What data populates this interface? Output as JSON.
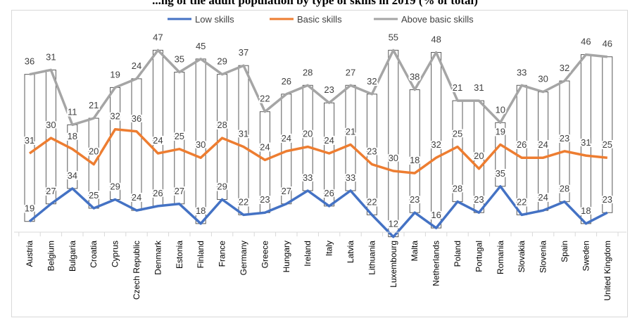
{
  "chart_data": {
    "type": "line",
    "title": "...ng of the adult population by type of skills in 2019 (% of total)",
    "xlabel": "",
    "ylabel": "",
    "legend_position": "top",
    "grid": false,
    "categories": [
      "Austria",
      "Belgium",
      "Bulgaria",
      "Croatia",
      "Cyprus",
      "Czech Republic",
      "Denmark",
      "Estonia",
      "Finland",
      "France",
      "Germany",
      "Greece",
      "Hungary",
      "Ireland",
      "Italy",
      "Latvia",
      "Lithuania",
      "Luxembourg",
      "Malta",
      "Netherlands",
      "Poland",
      "Portugal",
      "Romania",
      "Slovakia",
      "Slovenia",
      "Spain",
      "Sweden",
      "United Kingdom"
    ],
    "series": [
      {
        "name": "Low skills",
        "color": "#4472c4",
        "values": [
          19,
          27,
          34,
          25,
          29,
          24,
          26,
          27,
          18,
          29,
          22,
          23,
          27,
          33,
          26,
          33,
          22,
          12,
          23,
          16,
          28,
          23,
          35,
          22,
          24,
          28,
          18,
          23
        ]
      },
      {
        "name": "Basic skills",
        "color": "#ed7d31",
        "values": [
          31,
          30,
          18,
          20,
          32,
          36,
          24,
          25,
          30,
          28,
          31,
          24,
          24,
          20,
          24,
          21,
          23,
          30,
          18,
          32,
          25,
          20,
          19,
          26,
          24,
          23,
          31,
          25
        ]
      },
      {
        "name": "Above basic skills",
        "color": "#a5a5a5",
        "values": [
          36,
          31,
          11,
          21,
          19,
          24,
          47,
          35,
          45,
          29,
          37,
          22,
          26,
          28,
          23,
          27,
          32,
          55,
          38,
          48,
          21,
          31,
          10,
          33,
          30,
          32,
          46,
          46
        ]
      }
    ],
    "plotted_lines": {
      "low": [
        19,
        27,
        34,
        25,
        29,
        24,
        26,
        27,
        18,
        29,
        22,
        23,
        27,
        33,
        26,
        33,
        22,
        12,
        23,
        16,
        28,
        23,
        35,
        22,
        24,
        28,
        18,
        23
      ],
      "basic_cumulative": [
        50,
        57,
        52,
        45,
        61,
        60,
        50,
        52,
        48,
        57,
        53,
        47,
        51,
        53,
        50,
        54,
        45,
        42,
        41,
        48,
        53,
        43,
        54,
        48,
        48,
        51,
        49,
        48
      ],
      "above_cumulative": [
        86,
        88,
        63,
        66,
        80,
        84,
        97,
        87,
        93,
        86,
        90,
        69,
        77,
        81,
        73,
        81,
        77,
        97,
        79,
        96,
        74,
        74,
        64,
        81,
        78,
        83,
        95,
        94
      ]
    },
    "ylim": [
      0,
      100
    ]
  }
}
